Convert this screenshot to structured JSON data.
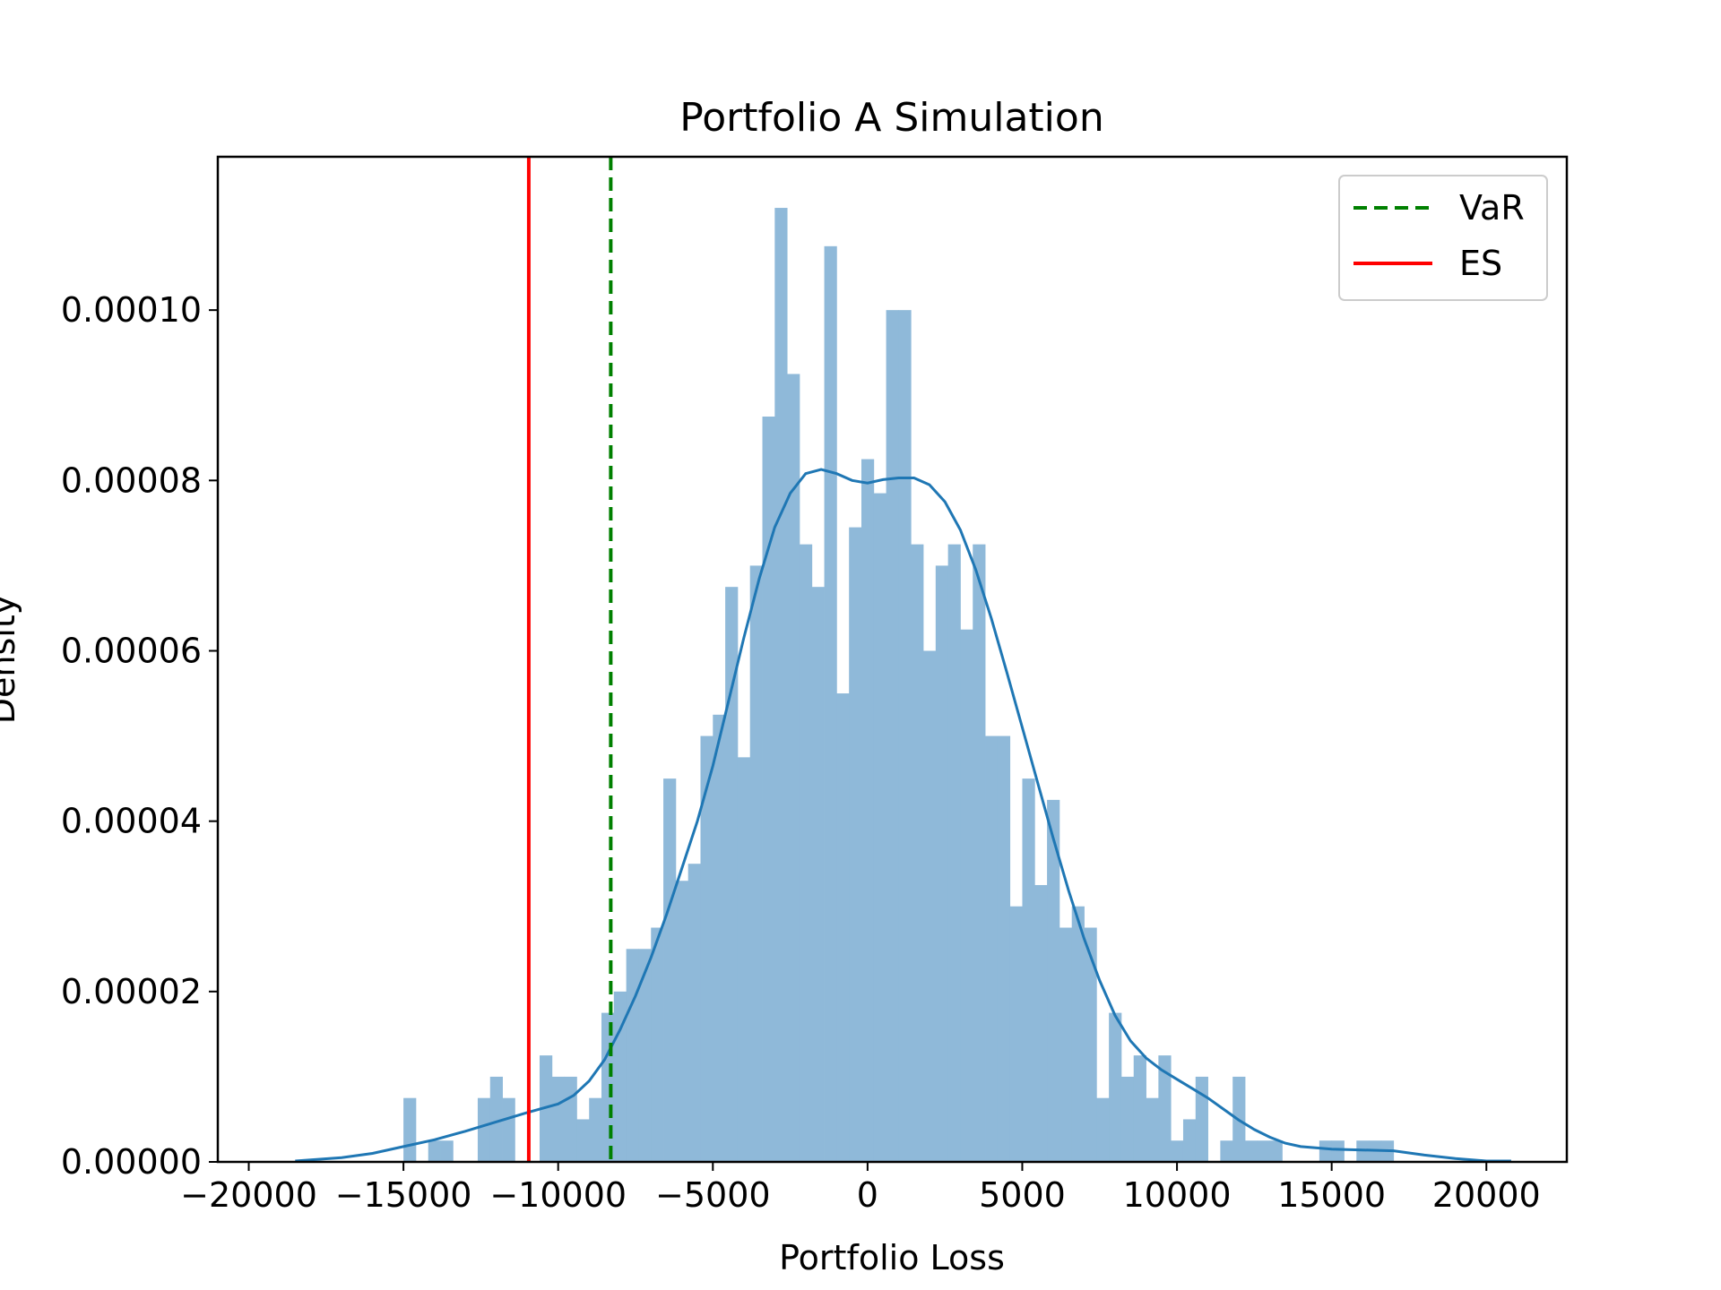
{
  "chart_data": {
    "type": "histogram",
    "title": "Portfolio A Simulation",
    "xlabel": "Portfolio Loss",
    "ylabel": "Density",
    "xlim": [
      -21000,
      22600
    ],
    "ylim": [
      0,
      0.000118
    ],
    "xticks": [
      -20000,
      -15000,
      -10000,
      -5000,
      0,
      5000,
      10000,
      15000,
      20000
    ],
    "xtick_labels": [
      "−20000",
      "−15000",
      "−10000",
      "−5000",
      "0",
      "5000",
      "10000",
      "15000",
      "20000"
    ],
    "yticks": [
      0,
      2e-05,
      4e-05,
      6e-05,
      8e-05,
      0.0001
    ],
    "ytick_labels": [
      "0.00000",
      "0.00002",
      "0.00004",
      "0.00006",
      "0.00008",
      "0.00010"
    ],
    "histogram": {
      "bin_start": -15000,
      "bin_width": 400,
      "density": [
        7.5e-06,
        0,
        2.5e-06,
        2.5e-06,
        0,
        0,
        7.5e-06,
        1e-05,
        7.5e-06,
        0,
        0,
        1.25e-05,
        1e-05,
        1e-05,
        5e-06,
        7.5e-06,
        1.75e-05,
        2e-05,
        2.5e-05,
        2.5e-05,
        2.75e-05,
        4.5e-05,
        3.3e-05,
        3.5e-05,
        5e-05,
        5.25e-05,
        6.75e-05,
        4.75e-05,
        7e-05,
        8.75e-05,
        0.000112,
        9.25e-05,
        7.25e-05,
        6.75e-05,
        0.0001075,
        5.5e-05,
        7.45e-05,
        8.25e-05,
        7.85e-05,
        0.0001,
        0.0001,
        7.25e-05,
        6e-05,
        7e-05,
        7.25e-05,
        6.25e-05,
        7.25e-05,
        5e-05,
        5e-05,
        3e-05,
        4.5e-05,
        3.25e-05,
        4.25e-05,
        2.75e-05,
        3e-05,
        2.75e-05,
        7.5e-06,
        1.75e-05,
        1e-05,
        1.25e-05,
        7.5e-06,
        1.25e-05,
        2.5e-06,
        5e-06,
        1e-05,
        0,
        2.5e-06,
        1e-05,
        2.5e-06,
        2.5e-06,
        2.5e-06,
        0,
        0,
        0,
        2.5e-06,
        2.5e-06,
        0,
        2.5e-06,
        2.5e-06,
        2.5e-06
      ],
      "color": "#8fb9d9"
    },
    "kde": {
      "color": "#1f77b4",
      "points": [
        [
          -18500,
          1e-07
        ],
        [
          -17000,
          5e-07
        ],
        [
          -16000,
          1e-06
        ],
        [
          -15000,
          1.8e-06
        ],
        [
          -14000,
          2.6e-06
        ],
        [
          -13000,
          3.6e-06
        ],
        [
          -12000,
          4.7e-06
        ],
        [
          -11000,
          5.8e-06
        ],
        [
          -10000,
          6.8e-06
        ],
        [
          -9500,
          7.8e-06
        ],
        [
          -9000,
          9.5e-06
        ],
        [
          -8500,
          1.2e-05
        ],
        [
          -8000,
          1.55e-05
        ],
        [
          -7500,
          1.95e-05
        ],
        [
          -7000,
          2.4e-05
        ],
        [
          -6500,
          2.9e-05
        ],
        [
          -6000,
          3.45e-05
        ],
        [
          -5500,
          4e-05
        ],
        [
          -5000,
          4.65e-05
        ],
        [
          -4500,
          5.4e-05
        ],
        [
          -4000,
          6.15e-05
        ],
        [
          -3500,
          6.85e-05
        ],
        [
          -3000,
          7.45e-05
        ],
        [
          -2500,
          7.85e-05
        ],
        [
          -2000,
          8.08e-05
        ],
        [
          -1500,
          8.13e-05
        ],
        [
          -1000,
          8.08e-05
        ],
        [
          -500,
          8e-05
        ],
        [
          0,
          7.97e-05
        ],
        [
          500,
          8.01e-05
        ],
        [
          1000,
          8.03e-05
        ],
        [
          1500,
          8.03e-05
        ],
        [
          2000,
          7.95e-05
        ],
        [
          2500,
          7.75e-05
        ],
        [
          3000,
          7.42e-05
        ],
        [
          3500,
          6.95e-05
        ],
        [
          4000,
          6.38e-05
        ],
        [
          4500,
          5.75e-05
        ],
        [
          5000,
          5.1e-05
        ],
        [
          5500,
          4.45e-05
        ],
        [
          6000,
          3.8e-05
        ],
        [
          6500,
          3.18e-05
        ],
        [
          7000,
          2.62e-05
        ],
        [
          7500,
          2.13e-05
        ],
        [
          8000,
          1.72e-05
        ],
        [
          8500,
          1.42e-05
        ],
        [
          9000,
          1.22e-05
        ],
        [
          9500,
          1.08e-05
        ],
        [
          10000,
          9.7e-06
        ],
        [
          10500,
          8.6e-06
        ],
        [
          11000,
          7.5e-06
        ],
        [
          11500,
          6.2e-06
        ],
        [
          12000,
          4.9e-06
        ],
        [
          12500,
          3.8e-06
        ],
        [
          13000,
          2.9e-06
        ],
        [
          13500,
          2.2e-06
        ],
        [
          14000,
          1.8e-06
        ],
        [
          15000,
          1.5e-06
        ],
        [
          16000,
          1.4e-06
        ],
        [
          17000,
          1.3e-06
        ],
        [
          18000,
          8e-07
        ],
        [
          19000,
          4e-07
        ],
        [
          20000,
          1e-07
        ],
        [
          20800,
          1e-07
        ]
      ]
    },
    "lines": [
      {
        "name": "VaR",
        "x": -8300,
        "color": "#008000",
        "style": "dashed"
      },
      {
        "name": "ES",
        "x": -10950,
        "color": "#ff0000",
        "style": "solid"
      }
    ],
    "legend": {
      "position": "top-right",
      "entries": [
        "VaR",
        "ES"
      ]
    },
    "grid": false
  }
}
